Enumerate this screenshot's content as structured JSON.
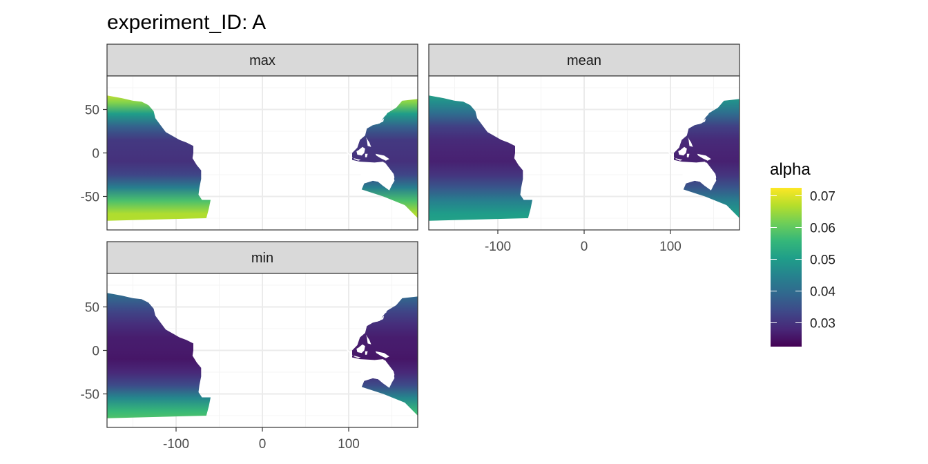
{
  "chart_data": {
    "type": "heatmap",
    "title": "experiment_ID: A",
    "xlabel": "",
    "ylabel": "",
    "xlim": [
      -180,
      180
    ],
    "ylim": [
      -90,
      90
    ],
    "x_ticks": [
      -100,
      0,
      100
    ],
    "y_ticks": [
      -50,
      0,
      50
    ],
    "x_tick_labels": [
      "-100",
      "0",
      "100"
    ],
    "y_tick_labels": [
      "-50",
      "0",
      "50"
    ],
    "grid": true,
    "legend": {
      "title": "alpha",
      "placement": "right",
      "breaks": [
        0.03,
        0.04,
        0.05,
        0.06,
        0.07
      ],
      "labels": [
        "0.03",
        "0.04",
        "0.05",
        "0.06",
        "0.07"
      ],
      "range": [
        0.0225,
        0.0725
      ]
    },
    "colors": {
      "viridis": [
        "#440154",
        "#482878",
        "#3e4989",
        "#31688e",
        "#26828e",
        "#1f9e89",
        "#35b779",
        "#6ece58",
        "#b5de2b",
        "#fde725"
      ],
      "strip_fill": "#d9d9d9",
      "panel_border": "#333333",
      "grid_major": "#ebebeb"
    },
    "panels": [
      {
        "label": "max",
        "lat_profile": [
          {
            "lat": -90,
            "value": 0.067
          },
          {
            "lat": -70,
            "value": 0.0665
          },
          {
            "lat": -55,
            "value": 0.058
          },
          {
            "lat": -40,
            "value": 0.044
          },
          {
            "lat": -25,
            "value": 0.033
          },
          {
            "lat": -10,
            "value": 0.0295
          },
          {
            "lat": 0,
            "value": 0.03
          },
          {
            "lat": 15,
            "value": 0.031
          },
          {
            "lat": 30,
            "value": 0.038
          },
          {
            "lat": 45,
            "value": 0.05
          },
          {
            "lat": 58,
            "value": 0.063
          },
          {
            "lat": 70,
            "value": 0.07
          }
        ]
      },
      {
        "label": "mean",
        "lat_profile": [
          {
            "lat": -90,
            "value": 0.052
          },
          {
            "lat": -70,
            "value": 0.05
          },
          {
            "lat": -55,
            "value": 0.044
          },
          {
            "lat": -40,
            "value": 0.036
          },
          {
            "lat": -25,
            "value": 0.03
          },
          {
            "lat": -10,
            "value": 0.027
          },
          {
            "lat": 0,
            "value": 0.0275
          },
          {
            "lat": 15,
            "value": 0.0285
          },
          {
            "lat": 30,
            "value": 0.032
          },
          {
            "lat": 45,
            "value": 0.04
          },
          {
            "lat": 58,
            "value": 0.047
          },
          {
            "lat": 70,
            "value": 0.052
          }
        ]
      },
      {
        "label": "min",
        "lat_profile": [
          {
            "lat": -90,
            "value": 0.062
          },
          {
            "lat": -70,
            "value": 0.056
          },
          {
            "lat": -55,
            "value": 0.046
          },
          {
            "lat": -40,
            "value": 0.034
          },
          {
            "lat": -25,
            "value": 0.028
          },
          {
            "lat": -10,
            "value": 0.0255
          },
          {
            "lat": 0,
            "value": 0.026
          },
          {
            "lat": 15,
            "value": 0.0265
          },
          {
            "lat": 30,
            "value": 0.029
          },
          {
            "lat": 45,
            "value": 0.033
          },
          {
            "lat": 58,
            "value": 0.038
          },
          {
            "lat": 70,
            "value": 0.042
          }
        ]
      }
    ],
    "ocean_region": {
      "east_pacific": [
        [
          -180,
          66
        ],
        [
          -163,
          63
        ],
        [
          -150,
          60
        ],
        [
          -140,
          59
        ],
        [
          -132,
          55
        ],
        [
          -126,
          48
        ],
        [
          -124,
          40
        ],
        [
          -118,
          32
        ],
        [
          -112,
          24
        ],
        [
          -105,
          20
        ],
        [
          -96,
          15
        ],
        [
          -88,
          12
        ],
        [
          -80,
          8
        ],
        [
          -80,
          0
        ],
        [
          -81,
          -6
        ],
        [
          -76,
          -14
        ],
        [
          -71,
          -20
        ],
        [
          -71,
          -30
        ],
        [
          -73,
          -40
        ],
        [
          -74,
          -48
        ],
        [
          -70,
          -54
        ],
        [
          -60,
          -54
        ],
        [
          -62,
          -64
        ],
        [
          -65,
          -75
        ],
        [
          -180,
          -78
        ]
      ],
      "west_pacific": [
        [
          180,
          62
        ],
        [
          162,
          60
        ],
        [
          155,
          52
        ],
        [
          145,
          46
        ],
        [
          140,
          40
        ],
        [
          136,
          34
        ],
        [
          128,
          32
        ],
        [
          121,
          28
        ],
        [
          119,
          20
        ],
        [
          113,
          15
        ],
        [
          110,
          6
        ],
        [
          104,
          0
        ],
        [
          104,
          -8
        ],
        [
          113,
          -10
        ],
        [
          130,
          -11
        ],
        [
          140,
          -10
        ],
        [
          146,
          -18
        ],
        [
          152,
          -26
        ],
        [
          153,
          -32
        ],
        [
          150,
          -37
        ],
        [
          147,
          -43
        ],
        [
          140,
          -38
        ],
        [
          134,
          -33
        ],
        [
          128,
          -32
        ],
        [
          118,
          -35
        ],
        [
          115,
          -42
        ],
        [
          140,
          -50
        ],
        [
          165,
          -60
        ],
        [
          180,
          -75
        ]
      ],
      "australia": [
        [
          114,
          -22
        ],
        [
          114,
          -34
        ],
        [
          118,
          -35
        ],
        [
          128,
          -32
        ],
        [
          134,
          -33
        ],
        [
          140,
          -38
        ],
        [
          147,
          -39
        ],
        [
          150,
          -37
        ],
        [
          153,
          -28
        ],
        [
          152,
          -24
        ],
        [
          145,
          -15
        ],
        [
          142,
          -11
        ],
        [
          136,
          -12
        ],
        [
          130,
          -12
        ],
        [
          122,
          -17
        ]
      ],
      "islands": [
        [
          [
            116,
            7
          ],
          [
            119,
            5
          ],
          [
            118,
            0
          ],
          [
            115,
            -3
          ],
          [
            110,
            -2
          ],
          [
            109,
            2
          ],
          [
            111,
            3
          ]
        ],
        [
          [
            131,
            -1
          ],
          [
            141,
            -3
          ],
          [
            147,
            -7
          ],
          [
            143,
            -9
          ],
          [
            137,
            -6
          ],
          [
            132,
            -3
          ]
        ],
        [
          [
            119,
            -1
          ],
          [
            122,
            -1
          ],
          [
            121,
            -5
          ],
          [
            119,
            -5
          ]
        ],
        [
          [
            95,
            5
          ],
          [
            105,
            -6
          ],
          [
            103,
            -5
          ],
          [
            96,
            2
          ]
        ],
        [
          [
            106,
            -6
          ],
          [
            114,
            -8
          ],
          [
            111,
            -9
          ],
          [
            106,
            -7
          ]
        ],
        [
          [
            130,
            33
          ],
          [
            136,
            35
          ],
          [
            141,
            40
          ],
          [
            140,
            36
          ],
          [
            133,
            33
          ]
        ],
        [
          [
            120,
            18
          ],
          [
            124,
            12
          ],
          [
            126,
            7
          ],
          [
            122,
            8
          ],
          [
            121,
            15
          ]
        ],
        [
          [
            142,
            45
          ],
          [
            144,
            44
          ],
          [
            141,
            42
          ]
        ]
      ]
    }
  }
}
